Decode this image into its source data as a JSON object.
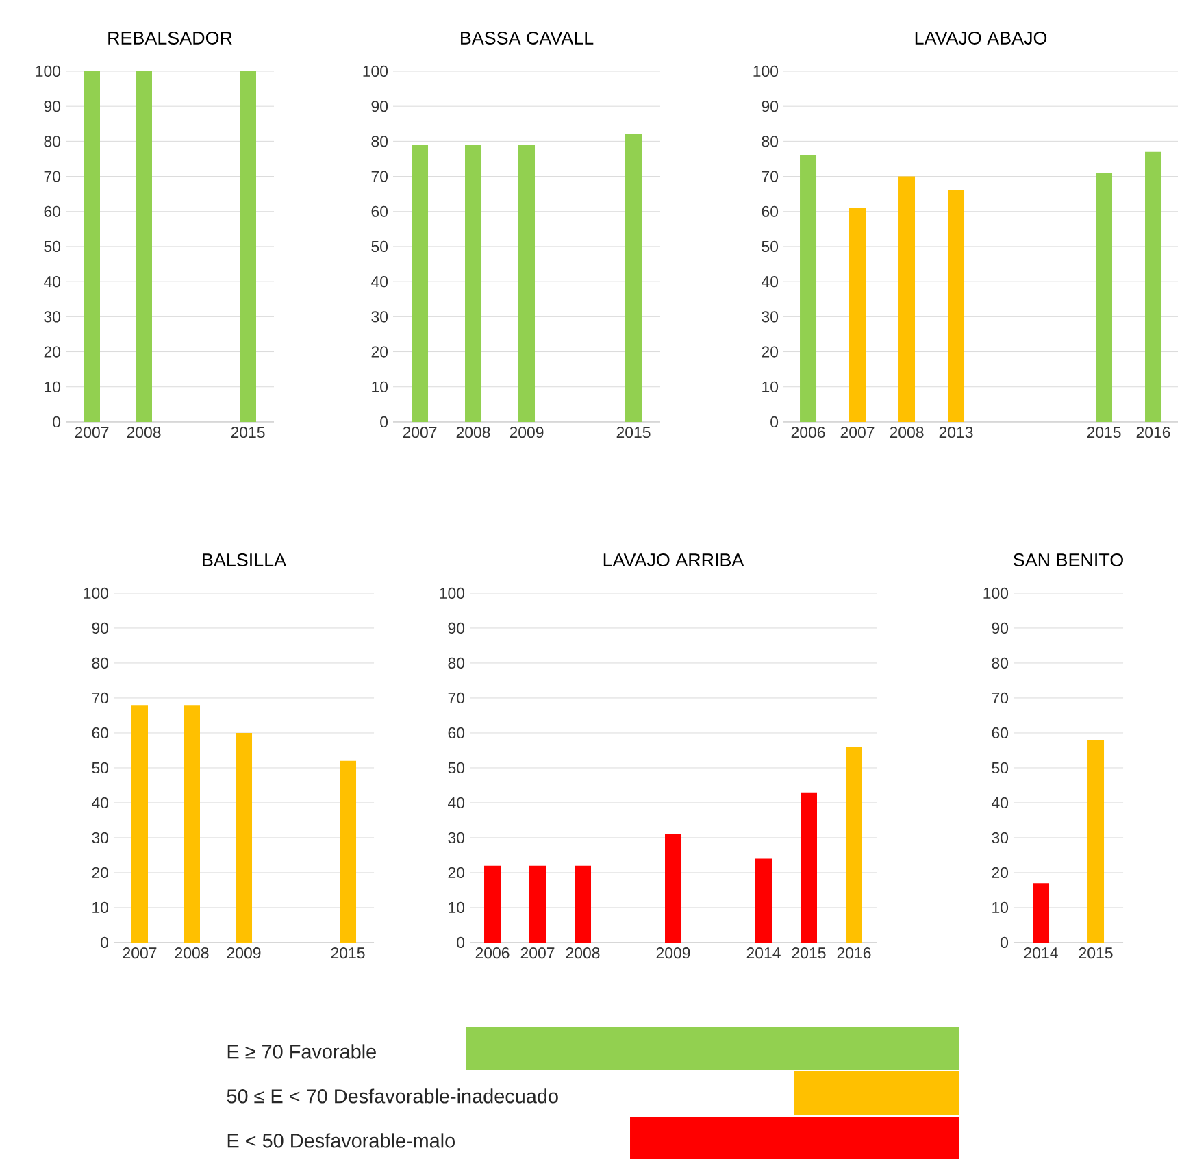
{
  "chart_data": [
    {
      "type": "bar",
      "title": "REBALSADOR",
      "categories": [
        "2007",
        "2008",
        null,
        "2015"
      ],
      "values": [
        100,
        100,
        null,
        100
      ],
      "colors": [
        "#92d050",
        "#92d050",
        null,
        "#92d050"
      ],
      "ylim": [
        0,
        100
      ],
      "yticks": [
        0,
        10,
        20,
        30,
        40,
        50,
        60,
        70,
        80,
        90,
        100
      ],
      "grid": "y"
    },
    {
      "type": "bar",
      "title": "BASSA CAVALL",
      "categories": [
        "2007",
        "2008",
        "2009",
        null,
        "2015"
      ],
      "values": [
        79,
        79,
        79,
        null,
        82
      ],
      "colors": [
        "#92d050",
        "#92d050",
        "#92d050",
        null,
        "#92d050"
      ],
      "ylim": [
        0,
        100
      ],
      "yticks": [
        0,
        10,
        20,
        30,
        40,
        50,
        60,
        70,
        80,
        90,
        100
      ],
      "grid": "y"
    },
    {
      "type": "bar",
      "title": "LAVAJO ABAJO",
      "categories": [
        "2006",
        "2007",
        "2008",
        "2013",
        null,
        null,
        "2015",
        "2016"
      ],
      "values": [
        76,
        61,
        70,
        66,
        null,
        null,
        71,
        77
      ],
      "colors": [
        "#92d050",
        "#ffc000",
        "#ffc000",
        "#ffc000",
        null,
        null,
        "#92d050",
        "#92d050"
      ],
      "ylim": [
        0,
        100
      ],
      "yticks": [
        0,
        10,
        20,
        30,
        40,
        50,
        60,
        70,
        80,
        90,
        100
      ],
      "grid": "y"
    },
    {
      "type": "bar",
      "title": "BALSILLA",
      "categories": [
        "2007",
        "2008",
        "2009",
        null,
        "2015"
      ],
      "values": [
        68,
        68,
        60,
        null,
        52
      ],
      "colors": [
        "#ffc000",
        "#ffc000",
        "#ffc000",
        null,
        "#ffc000"
      ],
      "ylim": [
        0,
        100
      ],
      "yticks": [
        0,
        10,
        20,
        30,
        40,
        50,
        60,
        70,
        80,
        90,
        100
      ],
      "grid": "y"
    },
    {
      "type": "bar",
      "title": "LAVAJO ARRIBA",
      "categories": [
        "2006",
        "2007",
        "2008",
        null,
        "2009",
        null,
        "2014",
        "2015",
        "2016"
      ],
      "values": [
        22,
        22,
        22,
        null,
        31,
        null,
        24,
        43,
        56
      ],
      "colors": [
        "#ff0000",
        "#ff0000",
        "#ff0000",
        null,
        "#ff0000",
        null,
        "#ff0000",
        "#ff0000",
        "#ffc000"
      ],
      "ylim": [
        0,
        100
      ],
      "yticks": [
        0,
        10,
        20,
        30,
        40,
        50,
        60,
        70,
        80,
        90,
        100
      ],
      "grid": "y"
    },
    {
      "type": "bar",
      "title": "SAN BENITO",
      "categories": [
        "2014",
        "2015"
      ],
      "values": [
        17,
        58
      ],
      "colors": [
        "#ff0000",
        "#ffc000"
      ],
      "ylim": [
        0,
        100
      ],
      "yticks": [
        0,
        10,
        20,
        30,
        40,
        50,
        60,
        70,
        80,
        90,
        100
      ],
      "grid": "y"
    },
    {
      "type": "other",
      "categories": [
        "E ≥ 70 Favorable",
        "50 ≤ E < 70 Desfavorable-inadecuado",
        "E < 50 Desfavorable-malo"
      ],
      "colors": [
        "#92d050",
        "#ffc000",
        "#ff0000"
      ]
    }
  ]
}
